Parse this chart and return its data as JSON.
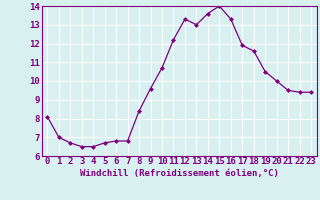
{
  "x": [
    0,
    1,
    2,
    3,
    4,
    5,
    6,
    7,
    8,
    9,
    10,
    11,
    12,
    13,
    14,
    15,
    16,
    17,
    18,
    19,
    20,
    21,
    22,
    23
  ],
  "y": [
    8.1,
    7.0,
    6.7,
    6.5,
    6.5,
    6.7,
    6.8,
    6.8,
    8.4,
    9.6,
    10.7,
    12.2,
    13.3,
    13.0,
    13.6,
    14.0,
    13.3,
    11.9,
    11.6,
    10.5,
    10.0,
    9.5,
    9.4,
    9.4
  ],
  "ylim": [
    6,
    14
  ],
  "yticks": [
    6,
    7,
    8,
    9,
    10,
    11,
    12,
    13,
    14
  ],
  "xlabel": "Windchill (Refroidissement éolien,°C)",
  "line_color": "#800080",
  "marker_color": "#800080",
  "bg_color": "#d8f0f0",
  "grid_color": "#ffffff",
  "xlabel_fontsize": 6.5,
  "tick_fontsize": 6.5
}
